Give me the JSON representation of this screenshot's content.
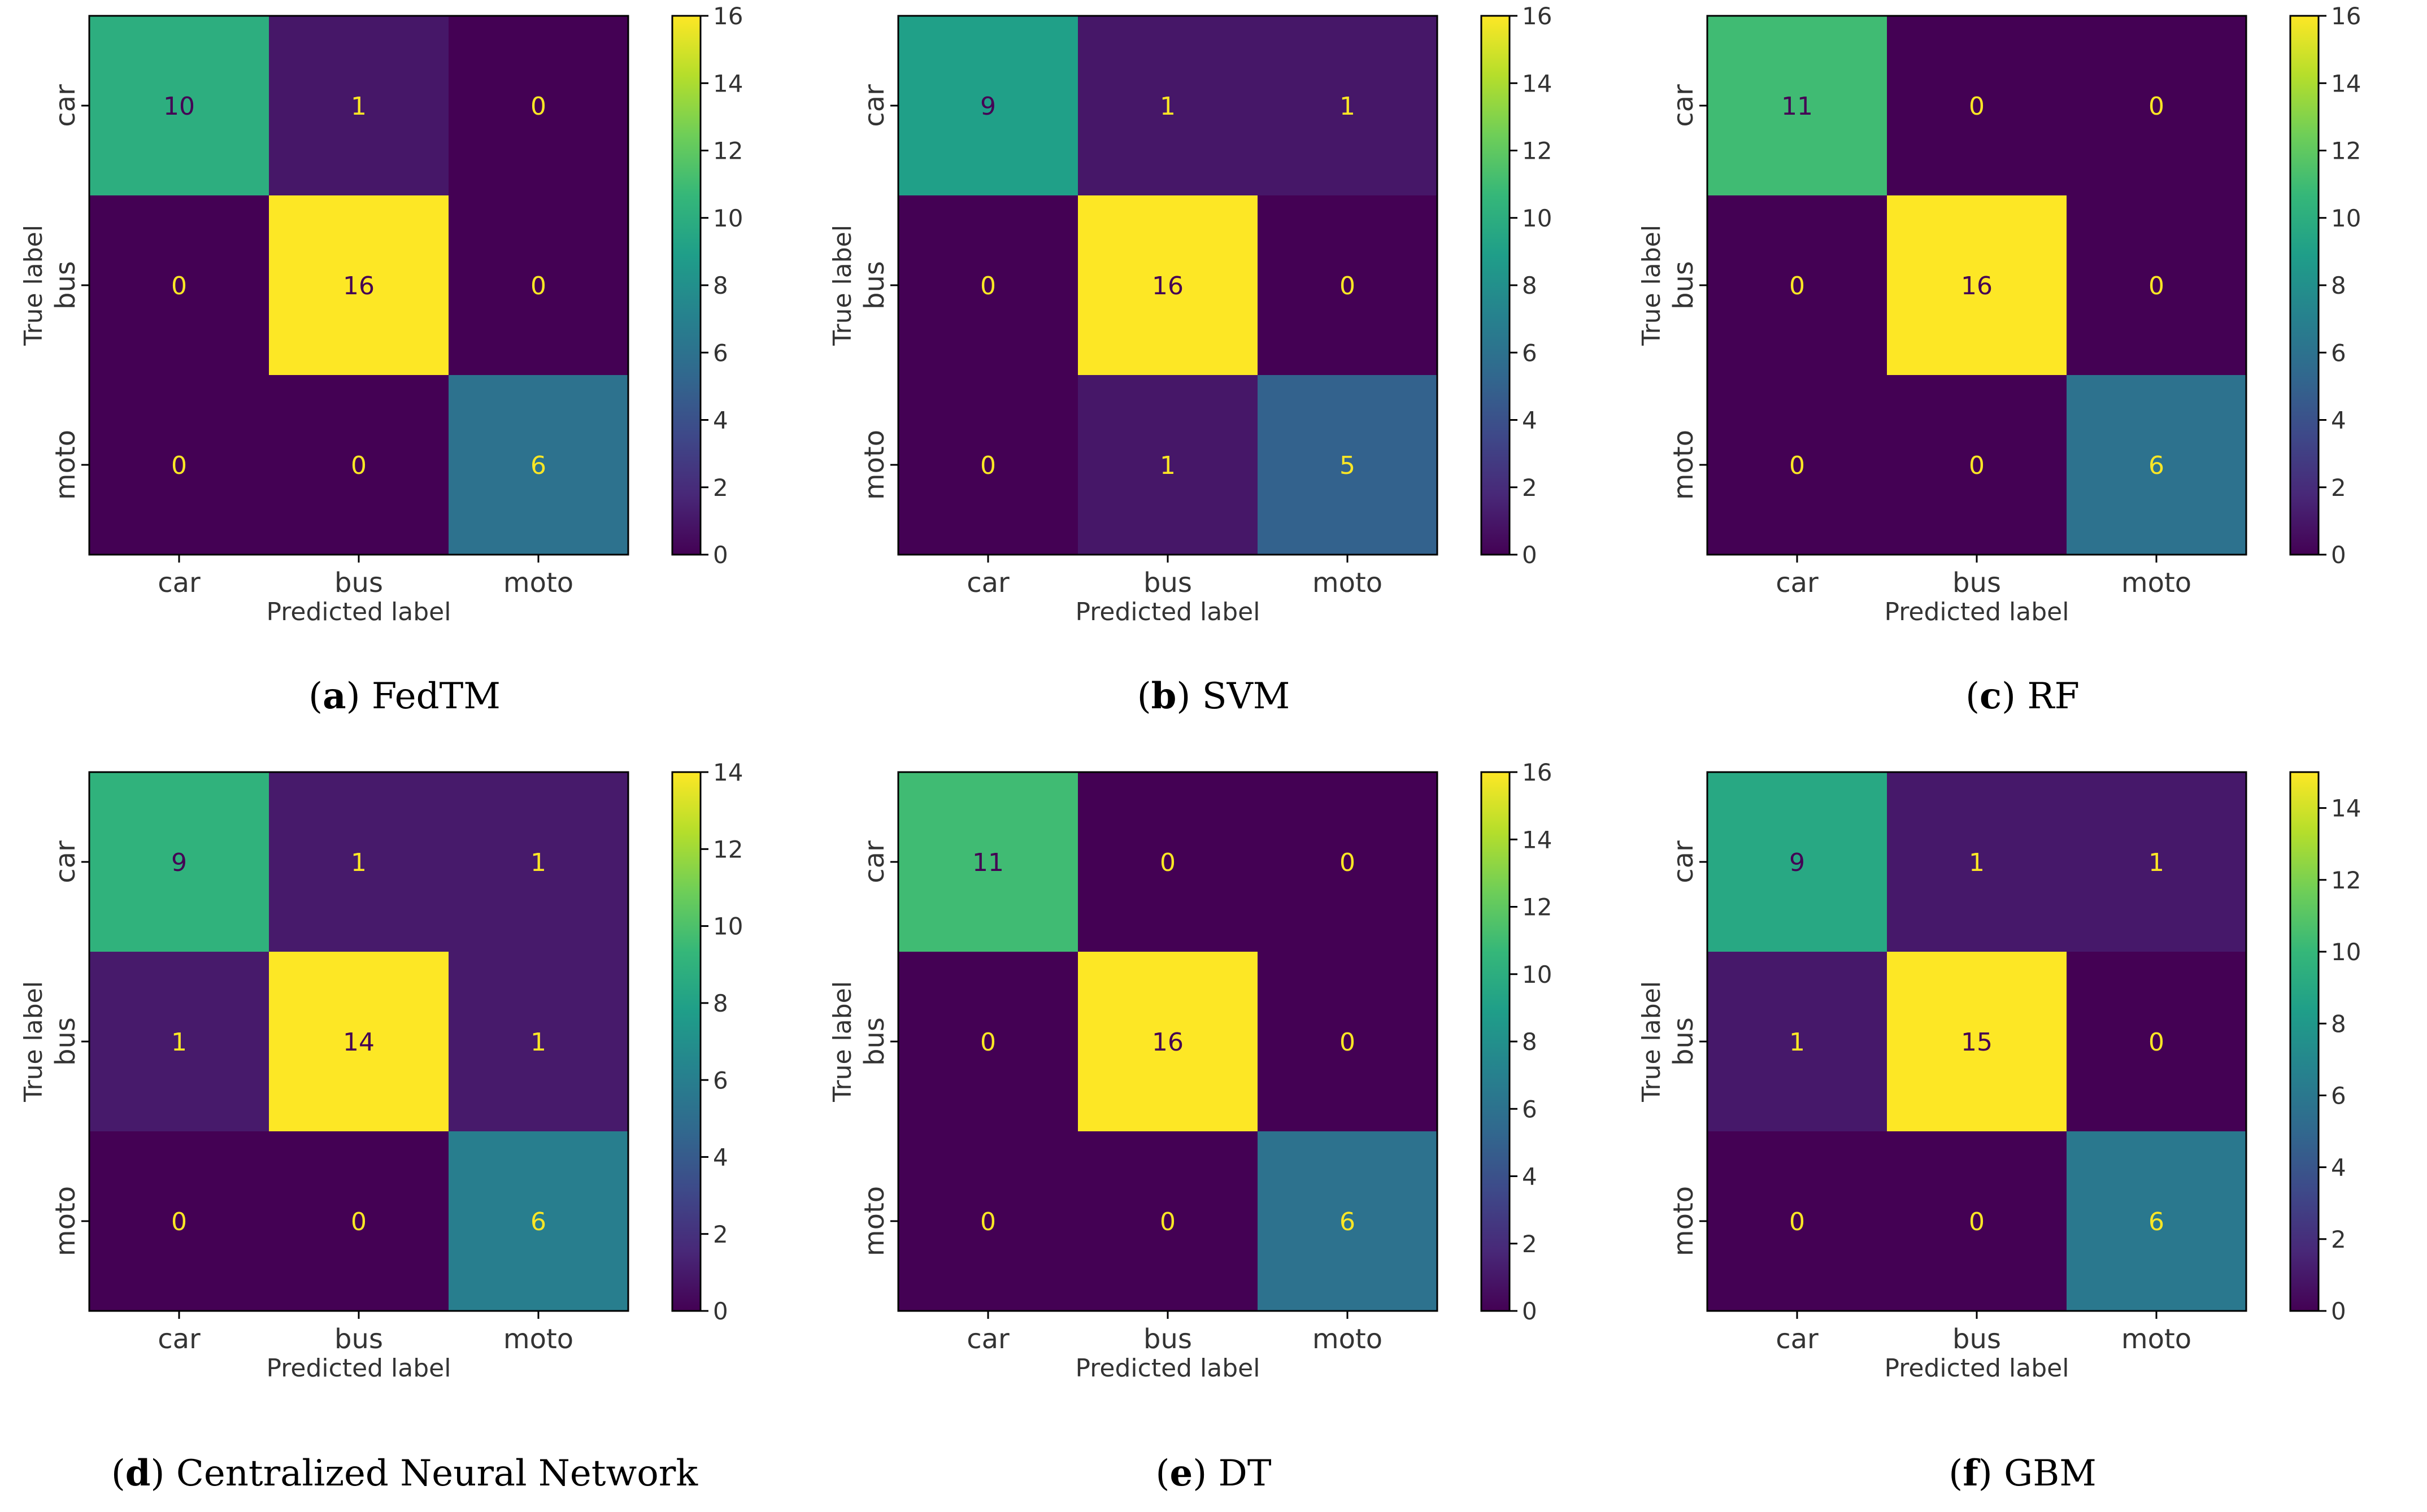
{
  "colors": {
    "cmap": [
      "#440154",
      "#482878",
      "#3e4989",
      "#31688e",
      "#26828e",
      "#1f9e89",
      "#35b779",
      "#6ece58",
      "#b5de2b",
      "#fde725"
    ],
    "text_on_dark": "#fde725",
    "text_on_light": "#440154"
  },
  "chart_data": [
    {
      "type": "heatmap",
      "panel": "a",
      "method": "FedTM",
      "caption": {
        "letter_open": "(",
        "letter": "a",
        "letter_close": ")",
        "text": "FedTM"
      },
      "xlabel": "Predicted label",
      "ylabel": "True label",
      "x_categories": [
        "car",
        "bus",
        "moto"
      ],
      "y_categories": [
        "car",
        "bus",
        "moto"
      ],
      "matrix": [
        [
          10,
          1,
          0
        ],
        [
          0,
          16,
          0
        ],
        [
          0,
          0,
          6
        ]
      ],
      "colorbar": {
        "min": 0,
        "max": 16,
        "ticks": [
          0,
          2,
          4,
          6,
          8,
          10,
          12,
          14,
          16
        ]
      }
    },
    {
      "type": "heatmap",
      "panel": "b",
      "method": "SVM",
      "caption": {
        "letter_open": "(",
        "letter": "b",
        "letter_close": ")",
        "text": "SVM"
      },
      "xlabel": "Predicted label",
      "ylabel": "True label",
      "x_categories": [
        "car",
        "bus",
        "moto"
      ],
      "y_categories": [
        "car",
        "bus",
        "moto"
      ],
      "matrix": [
        [
          9,
          1,
          1
        ],
        [
          0,
          16,
          0
        ],
        [
          0,
          1,
          5
        ]
      ],
      "colorbar": {
        "min": 0,
        "max": 16,
        "ticks": [
          0,
          2,
          4,
          6,
          8,
          10,
          12,
          14,
          16
        ]
      }
    },
    {
      "type": "heatmap",
      "panel": "c",
      "method": "RF",
      "caption": {
        "letter_open": "(",
        "letter": "c",
        "letter_close": ")",
        "text": "RF"
      },
      "xlabel": "Predicted label",
      "ylabel": "True label",
      "x_categories": [
        "car",
        "bus",
        "moto"
      ],
      "y_categories": [
        "car",
        "bus",
        "moto"
      ],
      "matrix": [
        [
          11,
          0,
          0
        ],
        [
          0,
          16,
          0
        ],
        [
          0,
          0,
          6
        ]
      ],
      "colorbar": {
        "min": 0,
        "max": 16,
        "ticks": [
          0,
          2,
          4,
          6,
          8,
          10,
          12,
          14,
          16
        ]
      }
    },
    {
      "type": "heatmap",
      "panel": "d",
      "method": "Centralized Neural Network",
      "caption": {
        "letter_open": "(",
        "letter": "d",
        "letter_close": ")",
        "text": "Centralized Neural Network"
      },
      "xlabel": "Predicted label",
      "ylabel": "True label",
      "x_categories": [
        "car",
        "bus",
        "moto"
      ],
      "y_categories": [
        "car",
        "bus",
        "moto"
      ],
      "matrix": [
        [
          9,
          1,
          1
        ],
        [
          1,
          14,
          1
        ],
        [
          0,
          0,
          6
        ]
      ],
      "colorbar": {
        "min": 0,
        "max": 14,
        "ticks": [
          0,
          2,
          4,
          6,
          8,
          10,
          12,
          14
        ]
      }
    },
    {
      "type": "heatmap",
      "panel": "e",
      "method": "DT",
      "caption": {
        "letter_open": "(",
        "letter": "e",
        "letter_close": ")",
        "text": "DT"
      },
      "xlabel": "Predicted label",
      "ylabel": "True label",
      "x_categories": [
        "car",
        "bus",
        "moto"
      ],
      "y_categories": [
        "car",
        "bus",
        "moto"
      ],
      "matrix": [
        [
          11,
          0,
          0
        ],
        [
          0,
          16,
          0
        ],
        [
          0,
          0,
          6
        ]
      ],
      "colorbar": {
        "min": 0,
        "max": 16,
        "ticks": [
          0,
          2,
          4,
          6,
          8,
          10,
          12,
          14,
          16
        ]
      }
    },
    {
      "type": "heatmap",
      "panel": "f",
      "method": "GBM",
      "caption": {
        "letter_open": "(",
        "letter": "f",
        "letter_close": ")",
        "text": "GBM"
      },
      "xlabel": "Predicted label",
      "ylabel": "True label",
      "x_categories": [
        "car",
        "bus",
        "moto"
      ],
      "y_categories": [
        "car",
        "bus",
        "moto"
      ],
      "matrix": [
        [
          9,
          1,
          1
        ],
        [
          1,
          15,
          0
        ],
        [
          0,
          0,
          6
        ]
      ],
      "colorbar": {
        "min": 0,
        "max": 15,
        "ticks": [
          0,
          2,
          4,
          6,
          8,
          10,
          12,
          14
        ]
      }
    }
  ]
}
